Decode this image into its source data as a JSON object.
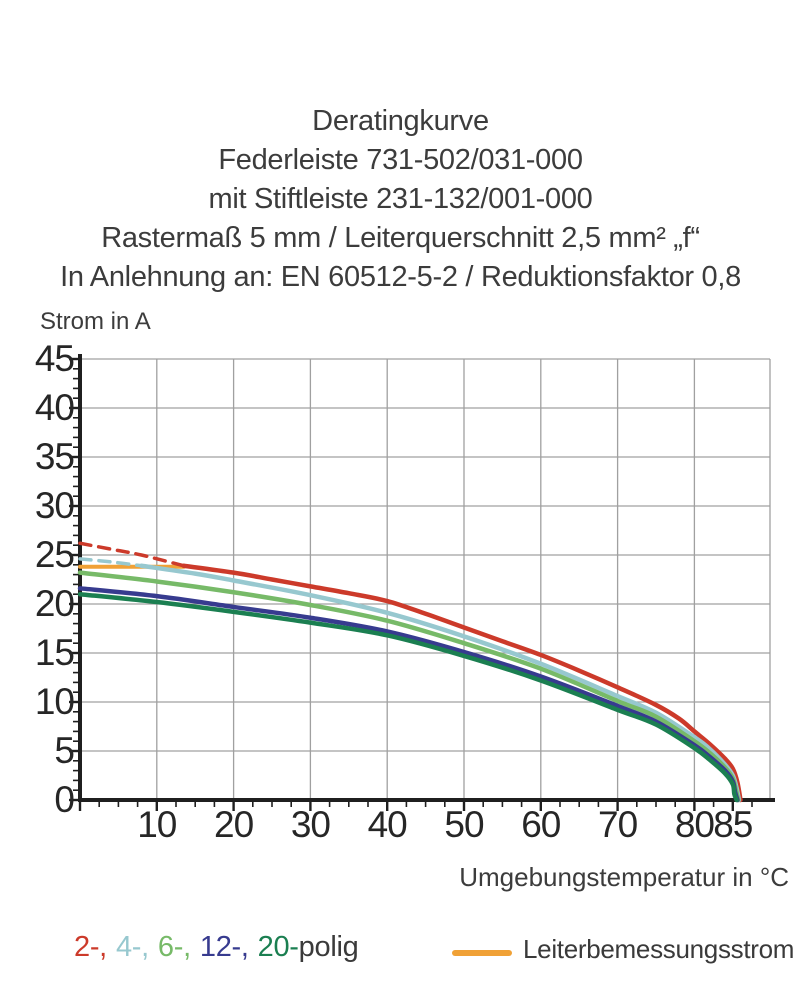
{
  "title": {
    "lines": [
      "Deratingkurve",
      "Federleiste 731-502/031-000",
      "mit Stiftleiste 231-132/001-000",
      "Rastermaß 5 mm / Leiterquerschnitt 2,5 mm² „f“",
      "In Anlehnung an: EN 60512-5-2 / Reduktionsfaktor 0,8"
    ]
  },
  "chart_data": {
    "type": "line",
    "title": "Deratingkurve",
    "xlabel": "Umgebungstemperatur in °C",
    "ylabel": "Strom in A",
    "xlim": [
      0,
      89.8
    ],
    "ylim": [
      0,
      45
    ],
    "xticks": [
      10,
      20,
      30,
      40,
      50,
      60,
      70,
      80,
      85
    ],
    "yticks": [
      0,
      5,
      10,
      15,
      20,
      25,
      30,
      35,
      40,
      45
    ],
    "x_minor_step": 2.5,
    "y_minor_step": 1,
    "grid": true,
    "grid_color": "#a0a0a0",
    "axis_color": "#1f1f1f",
    "series": [
      {
        "name": "2-polig",
        "color": "#cc3a2a",
        "dash_points": [
          [
            0,
            26.2
          ],
          [
            4,
            25.6
          ],
          [
            8,
            25.0
          ],
          [
            13.5,
            23.9
          ]
        ],
        "points": [
          [
            13.5,
            23.9
          ],
          [
            20,
            23.2
          ],
          [
            25,
            22.5
          ],
          [
            30,
            21.8
          ],
          [
            35,
            21.1
          ],
          [
            40,
            20.3
          ],
          [
            45,
            19.0
          ],
          [
            50,
            17.6
          ],
          [
            55,
            16.2
          ],
          [
            60,
            14.8
          ],
          [
            65,
            13.2
          ],
          [
            70,
            11.5
          ],
          [
            75,
            9.7
          ],
          [
            78,
            8.3
          ],
          [
            80,
            7.0
          ],
          [
            82,
            5.7
          ],
          [
            84,
            4.2
          ],
          [
            85,
            3.2
          ],
          [
            85.6,
            1.8
          ],
          [
            86,
            0
          ]
        ]
      },
      {
        "name": "4-polig",
        "color": "#97c8cf",
        "dash_points": [
          [
            0,
            24.6
          ],
          [
            4,
            24.3
          ],
          [
            8,
            23.9
          ]
        ],
        "points": [
          [
            8,
            23.9
          ],
          [
            15,
            23.1
          ],
          [
            20,
            22.4
          ],
          [
            30,
            20.9
          ],
          [
            40,
            19.1
          ],
          [
            50,
            16.7
          ],
          [
            60,
            13.9
          ],
          [
            70,
            10.6
          ],
          [
            75,
            8.9
          ],
          [
            80,
            6.4
          ],
          [
            82,
            5.2
          ],
          [
            84,
            3.6
          ],
          [
            85,
            2.5
          ],
          [
            85.5,
            1.2
          ],
          [
            85.8,
            0
          ]
        ]
      },
      {
        "name": "6-polig",
        "color": "#77ba68",
        "points": [
          [
            0,
            23.2
          ],
          [
            10,
            22.3
          ],
          [
            20,
            21.2
          ],
          [
            30,
            19.9
          ],
          [
            40,
            18.3
          ],
          [
            50,
            16.0
          ],
          [
            60,
            13.4
          ],
          [
            70,
            10.1
          ],
          [
            75,
            8.5
          ],
          [
            80,
            6.0
          ],
          [
            82,
            4.8
          ],
          [
            84,
            3.3
          ],
          [
            85,
            2.2
          ],
          [
            85.4,
            1.0
          ],
          [
            85.7,
            0
          ]
        ]
      },
      {
        "name": "12-polig",
        "color": "#373b8f",
        "points": [
          [
            0,
            21.6
          ],
          [
            10,
            20.8
          ],
          [
            20,
            19.7
          ],
          [
            30,
            18.6
          ],
          [
            40,
            17.2
          ],
          [
            50,
            15.1
          ],
          [
            60,
            12.6
          ],
          [
            70,
            9.6
          ],
          [
            75,
            8.0
          ],
          [
            80,
            5.6
          ],
          [
            82,
            4.4
          ],
          [
            84,
            3.0
          ],
          [
            85,
            1.9
          ],
          [
            85.3,
            0.8
          ],
          [
            85.6,
            0
          ]
        ]
      },
      {
        "name": "20-polig",
        "color": "#1b7f51",
        "points": [
          [
            0,
            21.0
          ],
          [
            10,
            20.2
          ],
          [
            20,
            19.2
          ],
          [
            30,
            18.1
          ],
          [
            40,
            16.8
          ],
          [
            50,
            14.7
          ],
          [
            60,
            12.2
          ],
          [
            70,
            9.2
          ],
          [
            75,
            7.7
          ],
          [
            80,
            5.3
          ],
          [
            82,
            4.1
          ],
          [
            84,
            2.7
          ],
          [
            85,
            1.6
          ],
          [
            85.2,
            0.6
          ],
          [
            85.5,
            0
          ]
        ]
      },
      {
        "name": "Leiterbemessungsstrom",
        "color": "#f0a136",
        "points": [
          [
            0,
            23.8
          ],
          [
            13.5,
            23.8
          ]
        ]
      }
    ]
  },
  "legend": {
    "poles": [
      {
        "label": "2-,",
        "color": "#cc3a2a"
      },
      {
        "label": "4-,",
        "color": "#97c8cf"
      },
      {
        "label": "6-,",
        "color": "#77ba68"
      },
      {
        "label": "12-,",
        "color": "#373b8f"
      },
      {
        "label": "20-",
        "color": "#1b7f51"
      }
    ],
    "poles_suffix": "polig",
    "rated_current_label": "Leiterbemessungsstrom",
    "rated_current_color": "#f0a136"
  }
}
